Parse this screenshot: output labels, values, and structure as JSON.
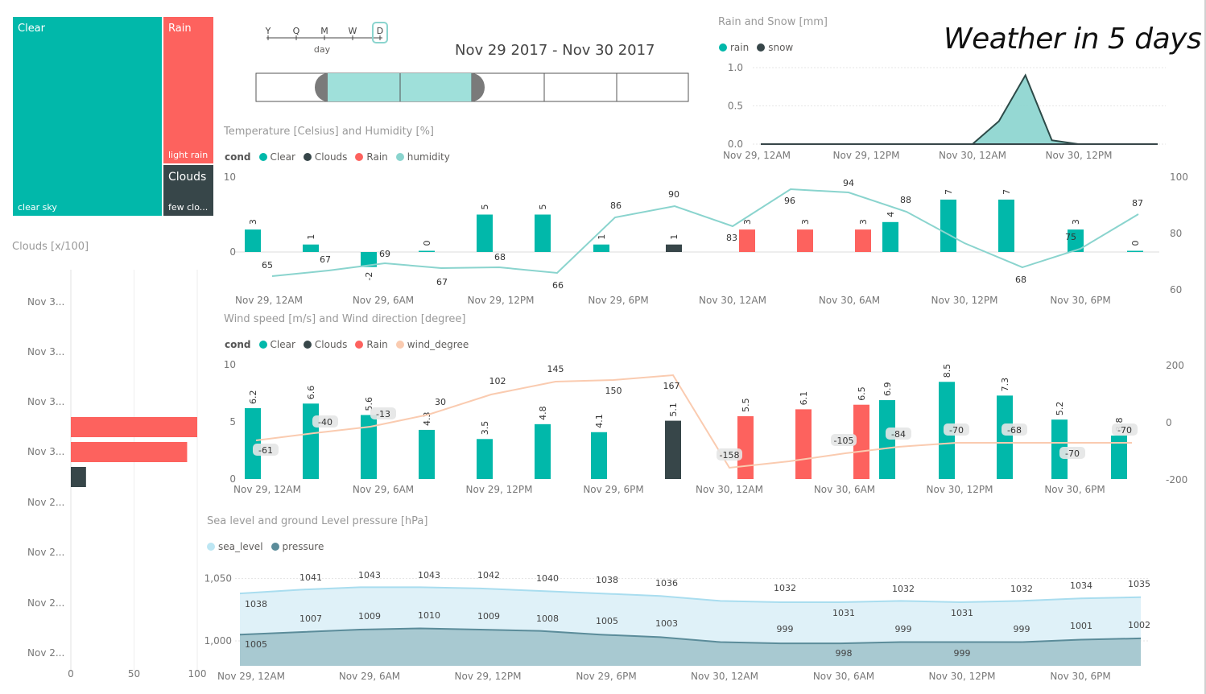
{
  "header": {
    "title": "Weather in 5 days",
    "date_range": "Nov 29 2017 - Nov 30 2017"
  },
  "colors": {
    "clear": "#01B8AA",
    "clouds": "#374649",
    "rain": "#FD625E",
    "humidity": "#8AD4CE",
    "wind": "#FACBB0",
    "sea": "#BCE6F3",
    "pressure": "#5B8C9A",
    "snow": "#374649"
  },
  "treemap": [
    {
      "label": "Clear",
      "sub": "clear sky",
      "color": "#01B8AA"
    },
    {
      "label": "Rain",
      "sub": "light rain",
      "color": "#FD625E"
    },
    {
      "label": "Clouds",
      "sub": "few clo...",
      "color": "#374649"
    }
  ],
  "slicer": {
    "levels": [
      "Y",
      "Q",
      "M",
      "W",
      "D"
    ],
    "selected": "D",
    "caption": "day"
  },
  "clouds_chart": {
    "title": "Clouds [x/100]",
    "categories": [
      "Nov 3...",
      "Nov 3...",
      "Nov 3...",
      "Nov 3...",
      "Nov 2...",
      "Nov 2...",
      "Nov 2...",
      "Nov 2..."
    ],
    "xticks": [
      "0",
      "50",
      "100"
    ]
  },
  "rain_chart": {
    "title": "Rain and Snow [mm]",
    "legend": [
      {
        "name": "rain",
        "color": "#01B8AA"
      },
      {
        "name": "snow",
        "color": "#374649"
      }
    ],
    "yticks": [
      "1.0",
      "0.5",
      "0.0"
    ],
    "xticks": [
      "Nov 29, 12AM",
      "Nov 29, 12PM",
      "Nov 30, 12AM",
      "Nov 30, 12PM"
    ]
  },
  "temp_chart": {
    "title": "Temperature [Celsius] and Humidity [%]",
    "legend_title": "cond",
    "legend": [
      {
        "name": "Clear",
        "color": "#01B8AA"
      },
      {
        "name": "Clouds",
        "color": "#374649"
      },
      {
        "name": "Rain",
        "color": "#FD625E"
      },
      {
        "name": "humidity",
        "color": "#8AD4CE"
      }
    ],
    "yticks_left": [
      "10",
      "0"
    ],
    "yticks_right": [
      "100",
      "80",
      "60"
    ],
    "xticks": [
      "Nov 29, 12AM",
      "Nov 29, 6AM",
      "Nov 29, 12PM",
      "Nov 29, 6PM",
      "Nov 30, 12AM",
      "Nov 30, 6AM",
      "Nov 30, 12PM",
      "Nov 30, 6PM"
    ]
  },
  "wind_chart": {
    "title": "Wind speed [m/s] and Wind direction [degree]",
    "legend_title": "cond",
    "legend": [
      {
        "name": "Clear",
        "color": "#01B8AA"
      },
      {
        "name": "Clouds",
        "color": "#374649"
      },
      {
        "name": "Rain",
        "color": "#FD625E"
      },
      {
        "name": "wind_degree",
        "color": "#FACBB0"
      }
    ],
    "yticks_left": [
      "10",
      "5",
      "0"
    ],
    "yticks_right": [
      "200",
      "0",
      "-200"
    ],
    "xticks": [
      "Nov 29, 12AM",
      "Nov 29, 6AM",
      "Nov 29, 12PM",
      "Nov 29, 6PM",
      "Nov 30, 12AM",
      "Nov 30, 6AM",
      "Nov 30, 12PM",
      "Nov 30, 6PM"
    ]
  },
  "pressure_chart": {
    "title": "Sea level and ground Level pressure [hPa]",
    "legend": [
      {
        "name": "sea_level",
        "color": "#BCE6F3"
      },
      {
        "name": "pressure",
        "color": "#5B8C9A"
      }
    ],
    "yticks": [
      "1,050",
      "1,000"
    ],
    "xticks": [
      "Nov 29, 12AM",
      "Nov 29, 6AM",
      "Nov 29, 12PM",
      "Nov 29, 6PM",
      "Nov 30, 12AM",
      "Nov 30, 6AM",
      "Nov 30, 12PM",
      "Nov 30, 6PM"
    ]
  },
  "chart_data": [
    {
      "type": "treemap",
      "categories": [
        "Clear",
        "Rain",
        "Clouds"
      ],
      "values": [
        11,
        4,
        1
      ]
    },
    {
      "type": "bar",
      "title": "Clouds [x/100]",
      "orientation": "horizontal",
      "categories": [
        "Nov 3...",
        "Nov 3...",
        "Nov 3...",
        "Nov 3...",
        "Nov 2...",
        "Nov 2...",
        "Nov 2...",
        "Nov 2..."
      ],
      "xlim": [
        0,
        100
      ],
      "series": [
        {
          "values": [
            0,
            0,
            0,
            100,
            0,
            0,
            0,
            0
          ],
          "color": "#FD625E"
        },
        {
          "values": [
            0,
            0,
            0,
            92,
            0,
            0,
            0,
            0
          ],
          "color": "#FD625E"
        },
        {
          "values": [
            0,
            0,
            0,
            12,
            0,
            0,
            0,
            0
          ],
          "color": "#374649"
        }
      ]
    },
    {
      "type": "area",
      "title": "Rain and Snow [mm]",
      "ylim": [
        0,
        1.0
      ],
      "x": [
        "Nov 29, 12AM",
        "Nov 29, 3AM",
        "Nov 29, 6AM",
        "Nov 29, 9AM",
        "Nov 29, 12PM",
        "Nov 29, 3PM",
        "Nov 29, 6PM",
        "Nov 29, 9PM",
        "Nov 30, 12AM",
        "Nov 30, 3AM",
        "Nov 30, 6AM",
        "Nov 30, 9AM",
        "Nov 30, 12PM",
        "Nov 30, 3PM",
        "Nov 30, 6PM",
        "Nov 30, 9PM"
      ],
      "series": [
        {
          "name": "rain",
          "values": [
            0,
            0,
            0,
            0,
            0,
            0,
            0,
            0,
            0,
            0.3,
            0.9,
            0.05,
            0,
            0,
            0,
            0
          ]
        },
        {
          "name": "snow",
          "values": [
            0,
            0,
            0,
            0,
            0,
            0,
            0,
            0,
            0,
            0,
            0,
            0,
            0,
            0,
            0,
            0
          ]
        }
      ]
    },
    {
      "type": "bar",
      "title": "Temperature [Celsius] and Humidity [%]",
      "ylim": [
        -3,
        10
      ],
      "y2lim": [
        60,
        100
      ],
      "x": [
        "Nov 29, 12AM",
        "Nov 29, 3AM",
        "Nov 29, 6AM",
        "Nov 29, 9AM",
        "Nov 29, 12PM",
        "Nov 29, 3PM",
        "Nov 29, 6PM",
        "Nov 29, 9PM",
        "Nov 30, 12AM",
        "Nov 30, 3AM",
        "Nov 30, 6AM",
        "Nov 30, 9AM",
        "Nov 30, 12PM",
        "Nov 30, 3PM",
        "Nov 30, 6PM",
        "Nov 30, 9PM"
      ],
      "series": [
        {
          "name": "temperature",
          "values": [
            3,
            1,
            -2,
            0,
            5,
            5,
            1,
            1,
            3,
            3,
            3,
            4,
            7,
            7,
            3,
            0
          ],
          "cond": [
            "Clear",
            "Clear",
            "Clear",
            "Clear",
            "Clear",
            "Clear",
            "Clear",
            "Clouds",
            "Rain",
            "Rain",
            "Rain",
            "Clear",
            "Clear",
            "Clear",
            "Clear",
            "Clear"
          ]
        },
        {
          "name": "humidity",
          "values": [
            65,
            67,
            69,
            67,
            68,
            66,
            86,
            90,
            83,
            96,
            94,
            88,
            null,
            68,
            75,
            87
          ]
        }
      ]
    },
    {
      "type": "bar",
      "title": "Wind speed [m/s] and Wind direction [degree]",
      "ylim": [
        0,
        10
      ],
      "y2lim": [
        -200,
        200
      ],
      "x": [
        "Nov 29, 12AM",
        "Nov 29, 3AM",
        "Nov 29, 6AM",
        "Nov 29, 9AM",
        "Nov 29, 12PM",
        "Nov 29, 3PM",
        "Nov 29, 6PM",
        "Nov 29, 9PM",
        "Nov 30, 12AM",
        "Nov 30, 3AM",
        "Nov 30, 6AM",
        "Nov 30, 9AM",
        "Nov 30, 12PM",
        "Nov 30, 3PM",
        "Nov 30, 6PM",
        "Nov 30, 9PM"
      ],
      "series": [
        {
          "name": "wind_speed",
          "values": [
            6.2,
            6.6,
            5.6,
            4.3,
            3.5,
            4.8,
            4.1,
            5.1,
            5.5,
            6.1,
            6.5,
            6.9,
            8.5,
            7.3,
            5.2,
            3.8
          ],
          "cond": [
            "Clear",
            "Clear",
            "Clear",
            "Clear",
            "Clear",
            "Clear",
            "Clear",
            "Clouds",
            "Rain",
            "Rain",
            "Rain",
            "Clear",
            "Clear",
            "Clear",
            "Clear",
            "Clear"
          ]
        },
        {
          "name": "wind_degree",
          "values": [
            -61,
            -40,
            -13,
            30,
            102,
            145,
            150,
            167,
            -158,
            null,
            -105,
            -84,
            -70,
            -68,
            -70,
            -70
          ]
        }
      ]
    },
    {
      "type": "area",
      "title": "Sea level and ground Level pressure [hPa]",
      "ylim": [
        990,
        1050
      ],
      "x": [
        "Nov 29, 12AM",
        "Nov 29, 3AM",
        "Nov 29, 6AM",
        "Nov 29, 9AM",
        "Nov 29, 12PM",
        "Nov 29, 3PM",
        "Nov 29, 6PM",
        "Nov 29, 9PM",
        "Nov 30, 12AM",
        "Nov 30, 3AM",
        "Nov 30, 6AM",
        "Nov 30, 9AM",
        "Nov 30, 12PM",
        "Nov 30, 3PM",
        "Nov 30, 6PM",
        "Nov 30, 9PM"
      ],
      "series": [
        {
          "name": "sea_level",
          "values": [
            1038,
            1041,
            1043,
            1043,
            1042,
            1040,
            1038,
            1036,
            1032,
            1031,
            1031,
            1032,
            1031,
            1032,
            1034,
            1035
          ]
        },
        {
          "name": "pressure",
          "values": [
            1005,
            1007,
            1009,
            1010,
            1009,
            1008,
            1005,
            1003,
            999,
            998,
            998,
            999,
            999,
            999,
            1001,
            1002
          ]
        }
      ]
    }
  ]
}
